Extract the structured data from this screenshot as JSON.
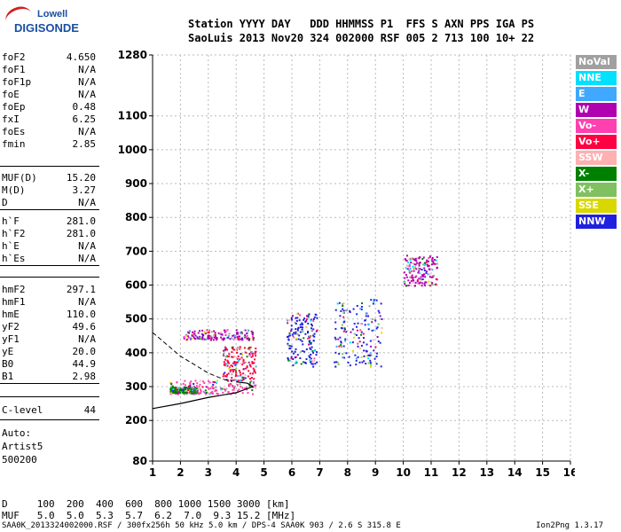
{
  "logo": {
    "line1": "Lowell",
    "line2": "DIGISONDE"
  },
  "header": {
    "line1": "Station YYYY DAY   DDD HHMMSS P1  FFS S AXN PPS IGA PS",
    "line2": "SaoLuis 2013 Nov20 324 002000 RSF 005 2 713 100 10+ 22"
  },
  "params": [
    {
      "label": "foF2",
      "value": "4.650"
    },
    {
      "label": "foF1",
      "value": "N/A"
    },
    {
      "label": "foF1p",
      "value": "N/A"
    },
    {
      "label": "foE",
      "value": "N/A"
    },
    {
      "label": "foEp",
      "value": "0.48"
    },
    {
      "label": "fxI",
      "value": "6.25"
    },
    {
      "label": "foEs",
      "value": "N/A"
    },
    {
      "label": "fmin",
      "value": "2.85"
    },
    {
      "label": "MUF(D)",
      "value": "15.20"
    },
    {
      "label": "M(D)",
      "value": "3.27"
    },
    {
      "label": "D",
      "value": "N/A"
    },
    {
      "label": "h`F",
      "value": "281.0"
    },
    {
      "label": "h`F2",
      "value": "281.0"
    },
    {
      "label": "h`E",
      "value": "N/A"
    },
    {
      "label": "h`Es",
      "value": "N/A"
    },
    {
      "label": "hmF2",
      "value": "297.1"
    },
    {
      "label": "hmF1",
      "value": "N/A"
    },
    {
      "label": "hmE",
      "value": "110.0"
    },
    {
      "label": "yF2",
      "value": "49.6"
    },
    {
      "label": "yF1",
      "value": "N/A"
    },
    {
      "label": "yE",
      "value": "20.0"
    },
    {
      "label": "B0",
      "value": "44.9"
    },
    {
      "label": "B1",
      "value": "2.98"
    },
    {
      "label": "C-level",
      "value": "44"
    }
  ],
  "auto": {
    "line1": "Auto:",
    "line2": "Artist5",
    "line3": "500200"
  },
  "legend": [
    {
      "label": "NoVal",
      "color": "#a0a0a0"
    },
    {
      "label": "NNE",
      "color": "#00e0ff"
    },
    {
      "label": "E",
      "color": "#40a8ff"
    },
    {
      "label": "W",
      "color": "#b000b0"
    },
    {
      "label": "Vo-",
      "color": "#ff40b0"
    },
    {
      "label": "Vo+",
      "color": "#ff0040"
    },
    {
      "label": "SSW",
      "color": "#ffb0b0"
    },
    {
      "label": "X-",
      "color": "#008000"
    },
    {
      "label": "X+",
      "color": "#80c060"
    },
    {
      "label": "SSE",
      "color": "#d8d800"
    },
    {
      "label": "NNW",
      "color": "#2020e0"
    }
  ],
  "bottom": {
    "d_row": "D     100  200  400  600  800 1000 1500 3000 [km]",
    "muf_row": "MUF   5.0  5.0  5.3  5.7  6.2  7.0  9.3 15.2 [MHz]"
  },
  "footer": {
    "left": "SAA0K_2013324002000.RSF / 300fx256h 50 kHz 5.0 km / DPS-4 SAA0K 903 / 2.6 S 315.8 E",
    "right": "Ion2Png 1.3.17"
  },
  "chart_data": {
    "type": "scatter",
    "title": "",
    "xlabel": "",
    "ylabel": "",
    "xlim": [
      1,
      16
    ],
    "ylim": [
      80,
      1280
    ],
    "xticks": [
      1,
      2,
      3,
      4,
      5,
      6,
      7,
      8,
      9,
      10,
      11,
      12,
      13,
      14,
      15,
      16
    ],
    "yticks": [
      80,
      200,
      300,
      400,
      500,
      600,
      700,
      800,
      900,
      1000,
      1100,
      1280
    ],
    "grid": true,
    "legend_placement": "right",
    "clusters": [
      {
        "name": "F-trace",
        "x": [
          1.6,
          4.7
        ],
        "y": [
          280,
          320
        ],
        "dir": "Vo-"
      },
      {
        "name": "F-trace-green",
        "x": [
          1.6,
          2.6
        ],
        "y": [
          282,
          300
        ],
        "dir": "X-"
      },
      {
        "name": "second-hop",
        "x": [
          2.1,
          4.6
        ],
        "y": [
          440,
          470
        ],
        "dir": "W"
      },
      {
        "name": "spread-F",
        "x": [
          3.5,
          4.7
        ],
        "y": [
          320,
          420
        ],
        "dir": "Vo+"
      },
      {
        "name": "scatter-6",
        "x": [
          5.8,
          6.9
        ],
        "y": [
          360,
          520
        ],
        "dir": "NNW"
      },
      {
        "name": "scatter-8",
        "x": [
          7.5,
          9.2
        ],
        "y": [
          360,
          560
        ],
        "dir": "NNW"
      },
      {
        "name": "scatter-10",
        "x": [
          10.0,
          11.2
        ],
        "y": [
          600,
          690
        ],
        "dir": "W"
      }
    ],
    "profile_solid": [
      [
        1.0,
        235
      ],
      [
        2.0,
        250
      ],
      [
        3.0,
        268
      ],
      [
        4.0,
        282
      ],
      [
        4.6,
        300
      ],
      [
        4.4,
        310
      ],
      [
        4.0,
        314
      ]
    ],
    "profile_dashed": [
      [
        1.0,
        460
      ],
      [
        2.0,
        390
      ],
      [
        3.0,
        340
      ],
      [
        3.6,
        320
      ],
      [
        4.0,
        318
      ]
    ]
  }
}
